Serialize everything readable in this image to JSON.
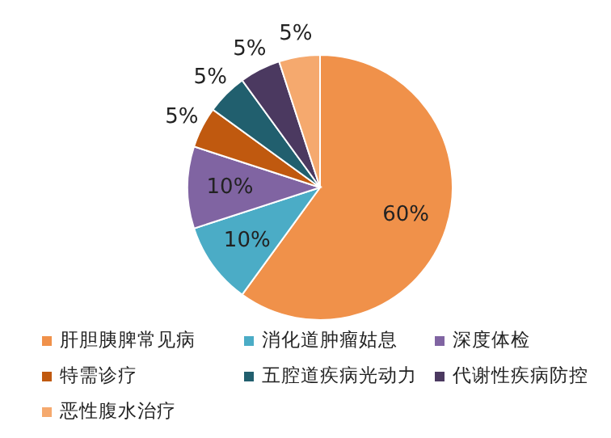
{
  "chart_data": {
    "type": "pie",
    "categories": [
      "肝胆胰脾常见病",
      "消化道肿瘤姑息",
      "深度体检",
      "特需诊疗",
      "五腔道疾病光动力",
      "代谢性疾病防控",
      "恶性腹水治疗"
    ],
    "values": [
      60,
      10,
      10,
      5,
      5,
      5,
      5
    ],
    "colors": [
      "#f0914a",
      "#4bacc6",
      "#8064a2",
      "#c0590f",
      "#215f6e",
      "#4b3960",
      "#f5a96e"
    ],
    "value_labels": [
      "60%",
      "10%",
      "10%",
      "5%",
      "5%",
      "5%",
      "5%"
    ],
    "legend": "bottom"
  }
}
